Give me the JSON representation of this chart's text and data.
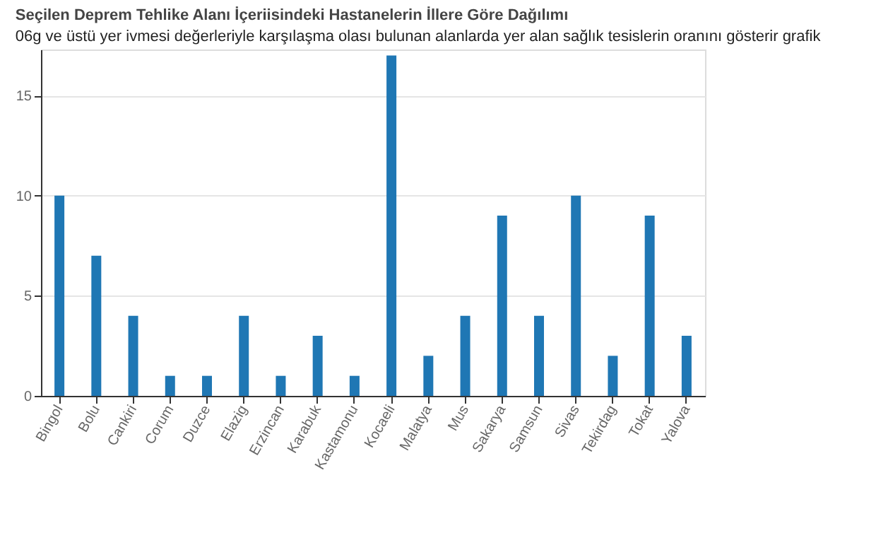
{
  "chart_data": {
    "type": "bar",
    "title": "Seçilen Deprem Tehlike Alanı İçeriisindeki Hastanelerin İllere Göre Dağılımı",
    "annotations": [
      "06g ve üstü yer ivmesi değerleriyle karşılaşma olası bulunan alanlarda yer alan sağlık tesislerin oranını gösterir grafik"
    ],
    "categories": [
      "Bingol",
      "Bolu",
      "Cankiri",
      "Corum",
      "Duzce",
      "Elazig",
      "Erzincan",
      "Karabuk",
      "Kastamonu",
      "Kocaeli",
      "Malatya",
      "Mus",
      "Sakarya",
      "Samsun",
      "Sivas",
      "Tekirdag",
      "Tokat",
      "Yalova"
    ],
    "values": [
      10,
      7,
      4,
      1,
      1,
      4,
      1,
      3,
      1,
      17,
      2,
      4,
      9,
      4,
      10,
      2,
      9,
      3
    ],
    "color": "#1f77b4",
    "ylim": [
      0,
      17.3
    ],
    "yticks": [
      0,
      5,
      10,
      15
    ],
    "grid": "y"
  }
}
